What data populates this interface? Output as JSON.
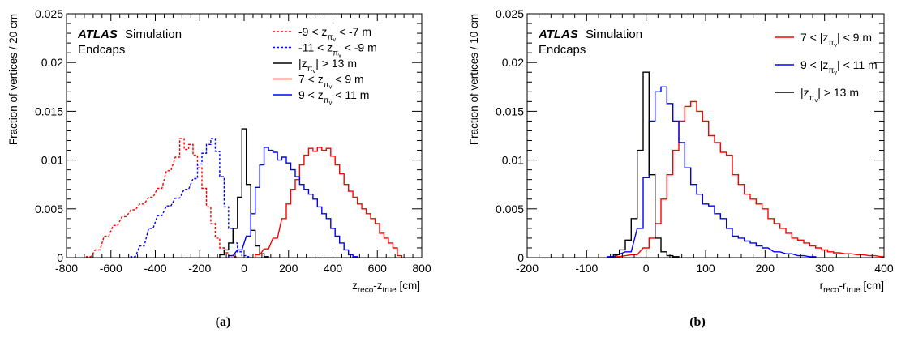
{
  "chart_data": [
    {
      "type": "line",
      "panel_label": "(a)",
      "experiment": "ATLAS",
      "experiment_note": "Simulation",
      "region": "Endcaps",
      "ylabel": "Fraction of vertices / 20 cm",
      "xlabel": {
        "main": "z",
        "sub1": "reco",
        "mid": "-z",
        "sub2": "true",
        "unit": " [cm]"
      },
      "xlim": [
        -800,
        800
      ],
      "ylim": [
        0,
        0.025
      ],
      "xticks": [
        -800,
        -600,
        -400,
        -200,
        0,
        200,
        400,
        600,
        800
      ],
      "xtick_labels": [
        "-800",
        "-600",
        "-400",
        "-200",
        "0",
        "200",
        "400",
        "600",
        "800"
      ],
      "yticks": [
        0,
        0.005,
        0.01,
        0.015,
        0.02,
        0.025
      ],
      "ytick_labels": [
        "0",
        "0.005",
        "0.01",
        "0.015",
        "0.02",
        "0.025"
      ],
      "grid": false,
      "legend_position": "top-right",
      "series": [
        {
          "legend": {
            "pre": "-9 < z",
            "sub1": "π",
            "sub2": "v",
            "post": " < -7 m"
          },
          "color": "#ff0000",
          "dashed": true,
          "points": [
            [
              -700,
              0.0001
            ],
            [
              -660,
              0.0008
            ],
            [
              -620,
              0.0022
            ],
            [
              -580,
              0.0033
            ],
            [
              -540,
              0.0042
            ],
            [
              -500,
              0.0049
            ],
            [
              -460,
              0.0055
            ],
            [
              -420,
              0.0062
            ],
            [
              -380,
              0.0071
            ],
            [
              -340,
              0.0089
            ],
            [
              -300,
              0.0103
            ],
            [
              -280,
              0.0122
            ],
            [
              -260,
              0.0111
            ],
            [
              -240,
              0.0116
            ],
            [
              -220,
              0.0105
            ],
            [
              -200,
              0.0092
            ],
            [
              -180,
              0.0071
            ],
            [
              -160,
              0.0052
            ],
            [
              -140,
              0.0035
            ],
            [
              -120,
              0.002
            ],
            [
              -100,
              0.001
            ],
            [
              -80,
              0.0005
            ],
            [
              -60,
              0.0002
            ],
            [
              -40,
              0.0001
            ]
          ]
        },
        {
          "legend": {
            "pre": "-11 < z",
            "sub1": "π",
            "sub2": "v",
            "post": " < -9 m"
          },
          "color": "#0000ff",
          "dashed": true,
          "points": [
            [
              -500,
              0.0001
            ],
            [
              -460,
              0.0012
            ],
            [
              -420,
              0.003
            ],
            [
              -380,
              0.0043
            ],
            [
              -340,
              0.0053
            ],
            [
              -300,
              0.0061
            ],
            [
              -260,
              0.007
            ],
            [
              -220,
              0.0081
            ],
            [
              -200,
              0.0096
            ],
            [
              -180,
              0.0107
            ],
            [
              -160,
              0.0116
            ],
            [
              -140,
              0.0122
            ],
            [
              -120,
              0.0109
            ],
            [
              -100,
              0.0083
            ],
            [
              -80,
              0.0052
            ],
            [
              -60,
              0.003
            ],
            [
              -40,
              0.0015
            ],
            [
              -20,
              0.0006
            ],
            [
              0,
              0.0002
            ],
            [
              20,
              0.0001
            ]
          ]
        },
        {
          "legend": {
            "pre": "|z",
            "sub1": "π",
            "sub2": "v",
            "post": "| > 13 m"
          },
          "color": "#000000",
          "dashed": false,
          "points": [
            [
              -100,
              0.0003
            ],
            [
              -80,
              0.0008
            ],
            [
              -60,
              0.0015
            ],
            [
              -40,
              0.003
            ],
            [
              -20,
              0.0062
            ],
            [
              0,
              0.0132
            ],
            [
              20,
              0.0075
            ],
            [
              40,
              0.0028
            ],
            [
              60,
              0.0012
            ],
            [
              80,
              0.0004
            ],
            [
              100,
              0.0001
            ]
          ]
        },
        {
          "legend": {
            "pre": "7 < z",
            "sub1": "π",
            "sub2": "v",
            "post": " < 9 m"
          },
          "color": "#ff0000",
          "dashed": false,
          "points": [
            [
              60,
              0.0003
            ],
            [
              100,
              0.0009
            ],
            [
              140,
              0.002
            ],
            [
              180,
              0.004
            ],
            [
              200,
              0.0055
            ],
            [
              220,
              0.007
            ],
            [
              240,
              0.008
            ],
            [
              260,
              0.0095
            ],
            [
              280,
              0.0105
            ],
            [
              300,
              0.0112
            ],
            [
              320,
              0.0109
            ],
            [
              340,
              0.0113
            ],
            [
              360,
              0.011
            ],
            [
              380,
              0.0112
            ],
            [
              400,
              0.0104
            ],
            [
              420,
              0.0095
            ],
            [
              440,
              0.0086
            ],
            [
              460,
              0.0075
            ],
            [
              480,
              0.0068
            ],
            [
              500,
              0.0062
            ],
            [
              520,
              0.0055
            ],
            [
              540,
              0.005
            ],
            [
              560,
              0.0045
            ],
            [
              580,
              0.004
            ],
            [
              600,
              0.0035
            ],
            [
              620,
              0.0025
            ],
            [
              640,
              0.002
            ],
            [
              660,
              0.0015
            ],
            [
              680,
              0.001
            ],
            [
              700,
              0.0002
            ]
          ]
        },
        {
          "legend": {
            "pre": "9 < z",
            "sub1": "π",
            "sub2": "v",
            "post": " < 11 m"
          },
          "color": "#0000ff",
          "dashed": false,
          "points": [
            [
              -60,
              0.0002
            ],
            [
              -20,
              0.0008
            ],
            [
              20,
              0.0022
            ],
            [
              40,
              0.0045
            ],
            [
              60,
              0.0072
            ],
            [
              80,
              0.0095
            ],
            [
              100,
              0.0113
            ],
            [
              120,
              0.011
            ],
            [
              140,
              0.0108
            ],
            [
              160,
              0.01
            ],
            [
              180,
              0.0103
            ],
            [
              200,
              0.0097
            ],
            [
              220,
              0.009
            ],
            [
              240,
              0.0083
            ],
            [
              260,
              0.0075
            ],
            [
              280,
              0.007
            ],
            [
              300,
              0.0065
            ],
            [
              320,
              0.006
            ],
            [
              340,
              0.0052
            ],
            [
              360,
              0.0045
            ],
            [
              380,
              0.004
            ],
            [
              400,
              0.003
            ],
            [
              420,
              0.0022
            ],
            [
              440,
              0.0015
            ],
            [
              460,
              0.0008
            ],
            [
              480,
              0.0003
            ],
            [
              500,
              0.0001
            ]
          ]
        }
      ]
    },
    {
      "type": "line",
      "panel_label": "(b)",
      "experiment": "ATLAS",
      "experiment_note": "Simulation",
      "region": "Endcaps",
      "ylabel": "Fraction of vertices / 10 cm",
      "xlabel": {
        "main": "r",
        "sub1": "reco",
        "mid": "-r",
        "sub2": "true",
        "unit": " [cm]"
      },
      "xlim": [
        -200,
        400
      ],
      "ylim": [
        0,
        0.025
      ],
      "xticks": [
        -200,
        -100,
        0,
        100,
        200,
        300,
        400
      ],
      "xtick_labels": [
        "-200",
        "-100",
        "0",
        "100",
        "200",
        "300",
        "400"
      ],
      "yticks": [
        0,
        0.005,
        0.01,
        0.015,
        0.02,
        0.025
      ],
      "ytick_labels": [
        "0",
        "0.005",
        "0.01",
        "0.015",
        "0.02",
        "0.025"
      ],
      "grid": false,
      "legend_position": "top-right",
      "series": [
        {
          "legend": {
            "pre": "7 < |z",
            "sub1": "π",
            "sub2": "v",
            "post": "| < 9 m"
          },
          "color": "#ff0000",
          "dashed": false,
          "points": [
            [
              -50,
              0.0001
            ],
            [
              -20,
              0.0003
            ],
            [
              0,
              0.001
            ],
            [
              10,
              0.002
            ],
            [
              20,
              0.0035
            ],
            [
              30,
              0.006
            ],
            [
              40,
              0.0085
            ],
            [
              50,
              0.011
            ],
            [
              60,
              0.014
            ],
            [
              70,
              0.0155
            ],
            [
              80,
              0.016
            ],
            [
              90,
              0.015
            ],
            [
              100,
              0.014
            ],
            [
              110,
              0.0125
            ],
            [
              120,
              0.0118
            ],
            [
              130,
              0.0108
            ],
            [
              140,
              0.0105
            ],
            [
              150,
              0.0085
            ],
            [
              160,
              0.0075
            ],
            [
              170,
              0.0065
            ],
            [
              180,
              0.006
            ],
            [
              190,
              0.0055
            ],
            [
              200,
              0.005
            ],
            [
              210,
              0.004
            ],
            [
              220,
              0.0035
            ],
            [
              230,
              0.003
            ],
            [
              240,
              0.0025
            ],
            [
              250,
              0.002
            ],
            [
              260,
              0.0018
            ],
            [
              270,
              0.0015
            ],
            [
              280,
              0.0012
            ],
            [
              290,
              0.001
            ],
            [
              300,
              0.0008
            ],
            [
              310,
              0.0006
            ],
            [
              320,
              0.0005
            ],
            [
              340,
              0.0004
            ],
            [
              360,
              0.0003
            ],
            [
              380,
              0.0002
            ],
            [
              400,
              0.0001
            ]
          ]
        },
        {
          "legend": {
            "pre": "9 < |z",
            "sub1": "π",
            "sub2": "v",
            "post": "| < 11 m"
          },
          "color": "#0000ff",
          "dashed": false,
          "points": [
            [
              -60,
              0.0001
            ],
            [
              -30,
              0.0006
            ],
            [
              -10,
              0.003
            ],
            [
              0,
              0.0082
            ],
            [
              10,
              0.014
            ],
            [
              20,
              0.017
            ],
            [
              30,
              0.0175
            ],
            [
              40,
              0.0158
            ],
            [
              50,
              0.014
            ],
            [
              60,
              0.0118
            ],
            [
              70,
              0.0092
            ],
            [
              80,
              0.0075
            ],
            [
              90,
              0.0065
            ],
            [
              100,
              0.0055
            ],
            [
              110,
              0.0053
            ],
            [
              120,
              0.0045
            ],
            [
              130,
              0.004
            ],
            [
              140,
              0.003
            ],
            [
              150,
              0.0022
            ],
            [
              160,
              0.002
            ],
            [
              170,
              0.0017
            ],
            [
              180,
              0.0015
            ],
            [
              190,
              0.0012
            ],
            [
              200,
              0.001
            ],
            [
              220,
              0.0006
            ],
            [
              240,
              0.0004
            ],
            [
              260,
              0.0002
            ],
            [
              280,
              0.0001
            ]
          ]
        },
        {
          "legend": {
            "pre": "|z",
            "sub1": "π",
            "sub2": "v",
            "post": "| > 13 m"
          },
          "color": "#000000",
          "dashed": false,
          "points": [
            [
              -50,
              0.0003
            ],
            [
              -40,
              0.0008
            ],
            [
              -30,
              0.0018
            ],
            [
              -20,
              0.004
            ],
            [
              -10,
              0.011
            ],
            [
              0,
              0.019
            ],
            [
              10,
              0.0085
            ],
            [
              20,
              0.002
            ],
            [
              30,
              0.0006
            ],
            [
              40,
              0.0002
            ],
            [
              50,
              0.0001
            ]
          ]
        }
      ]
    }
  ]
}
